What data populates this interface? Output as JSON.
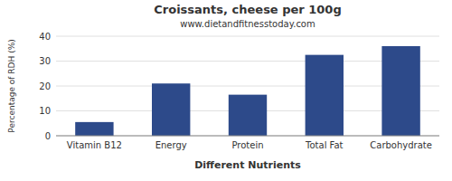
{
  "chart_data": {
    "type": "bar",
    "title": "Croissants, cheese per 100g",
    "subtitle": "www.dietandfitnesstoday.com",
    "xlabel": "Different Nutrients",
    "ylabel": "Percentage of RDH (%)",
    "categories": [
      "Vitamin B12",
      "Energy",
      "Protein",
      "Total Fat",
      "Carbohydrate"
    ],
    "values": [
      5.5,
      21.0,
      16.5,
      32.5,
      36.0
    ],
    "color": "#2d4a8a",
    "ylim": [
      0,
      40
    ],
    "yticks": [
      0,
      10,
      20,
      30,
      40
    ],
    "grid": true
  }
}
